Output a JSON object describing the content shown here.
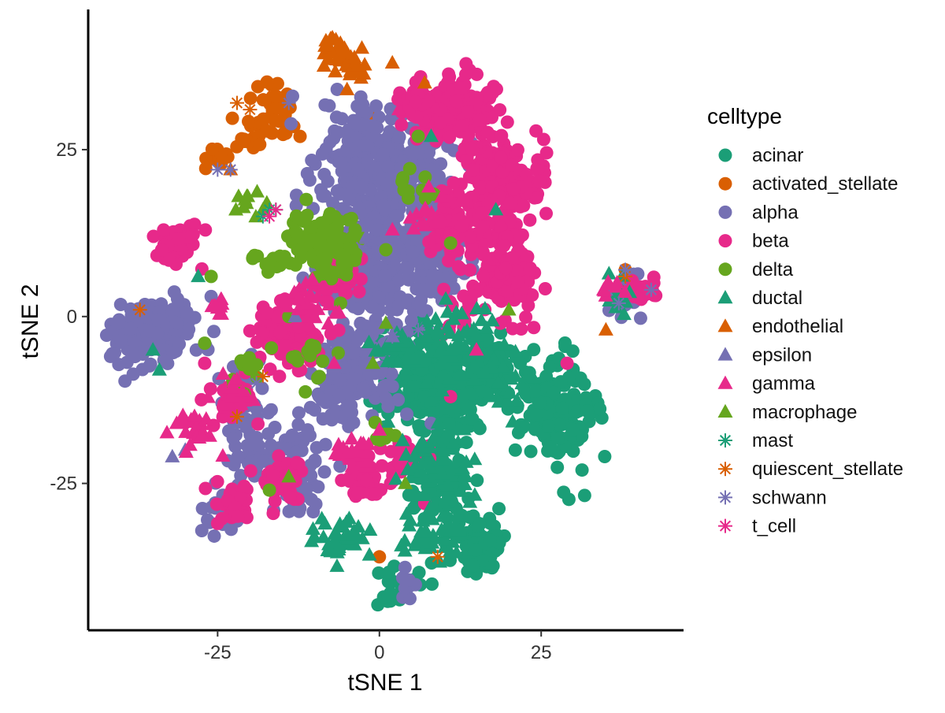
{
  "chart_data": {
    "type": "scatter",
    "title": "",
    "xlabel": "tSNE 1",
    "ylabel": "tSNE 2",
    "xlim": [
      -45,
      47
    ],
    "ylim": [
      -47,
      46
    ],
    "x_ticks": [
      -25,
      0,
      25
    ],
    "y_ticks": [
      -25,
      0,
      25
    ],
    "x_tick_labels": [
      "-25",
      "0",
      "25"
    ],
    "y_tick_labels": [
      "-25",
      "0",
      "25"
    ],
    "grid": false,
    "legend": {
      "title": "celltype",
      "placement": "right"
    },
    "series": [
      {
        "name": "acinar",
        "color": "#1B9E77",
        "shape": "circle",
        "clusters": [
          [
            7,
            -9,
            4,
            5,
            150
          ],
          [
            11,
            -12,
            3,
            4,
            100
          ],
          [
            16,
            -7,
            3,
            3,
            80
          ],
          [
            27,
            -14,
            4,
            5,
            140
          ],
          [
            9,
            -25,
            3,
            3,
            60
          ],
          [
            14,
            -32,
            3,
            4,
            50
          ],
          [
            3,
            -40,
            2,
            2,
            25
          ],
          [
            16,
            -35,
            2,
            2,
            30
          ]
        ],
        "points": [
          [
            -32,
            0
          ],
          [
            21,
            -20
          ]
        ]
      },
      {
        "name": "activated_stellate",
        "color": "#D95F02",
        "shape": "circle",
        "clusters": [
          [
            -25,
            24,
            2,
            1,
            18
          ],
          [
            -20,
            28,
            2,
            2,
            18
          ],
          [
            -16,
            32,
            2,
            2,
            25
          ],
          [
            -16,
            27,
            2,
            2,
            10
          ]
        ],
        "points": [
          [
            -1,
            30
          ],
          [
            0,
            -36
          ],
          [
            38,
            7
          ],
          [
            8,
            28
          ]
        ]
      },
      {
        "name": "alpha",
        "color": "#7570B3",
        "shape": "circle",
        "clusters": [
          [
            0,
            22,
            6,
            6,
            320
          ],
          [
            -1,
            6,
            5,
            5,
            200
          ],
          [
            -4,
            -8,
            4,
            4,
            180
          ],
          [
            8,
            10,
            3,
            5,
            130
          ],
          [
            -38,
            -3,
            3,
            3,
            80
          ],
          [
            -32,
            -2,
            3,
            3,
            60
          ],
          [
            -18,
            -21,
            3,
            3,
            50
          ],
          [
            -12,
            -23,
            3,
            4,
            50
          ],
          [
            -21,
            -12,
            2,
            3,
            30
          ],
          [
            -24,
            -29,
            2,
            2,
            25
          ],
          [
            38,
            3,
            2,
            2,
            20
          ],
          [
            4,
            -41,
            1,
            2,
            10
          ]
        ],
        "points": [
          [
            -26,
            3
          ],
          [
            8,
            -16
          ],
          [
            2,
            31
          ],
          [
            -10,
            -14
          ],
          [
            -12,
            -23
          ]
        ]
      },
      {
        "name": "beta",
        "color": "#E7298A",
        "shape": "circle",
        "clusters": [
          [
            12,
            31,
            4,
            3,
            160
          ],
          [
            19,
            20,
            4,
            4,
            180
          ],
          [
            20,
            6,
            3,
            4,
            130
          ],
          [
            12,
            13,
            3,
            3,
            80
          ],
          [
            6,
            32,
            2,
            2,
            40
          ],
          [
            -31,
            11,
            2,
            2,
            50
          ],
          [
            -14,
            -3,
            3,
            3,
            130
          ],
          [
            -6,
            6,
            2,
            2,
            50
          ],
          [
            -2,
            -24,
            2,
            2,
            60
          ],
          [
            -15,
            -25,
            2,
            2,
            50
          ],
          [
            -23,
            -13,
            2,
            2,
            30
          ],
          [
            -23,
            -28,
            2,
            2,
            25
          ],
          [
            41,
            4,
            2,
            1,
            30
          ],
          [
            4,
            -21,
            2,
            2,
            20
          ],
          [
            13,
            1,
            2,
            2,
            15
          ]
        ],
        "points": [
          [
            11,
            -12
          ],
          [
            -27,
            -7
          ],
          [
            -25,
            -31
          ],
          [
            7,
            -28
          ],
          [
            29,
            -7
          ],
          [
            -3,
            -20
          ]
        ]
      },
      {
        "name": "delta",
        "color": "#66A61E",
        "shape": "circle",
        "clusters": [
          [
            -9,
            11,
            3,
            3,
            110
          ],
          [
            -17,
            8,
            2,
            1,
            20
          ],
          [
            1,
            -18,
            1,
            1,
            8
          ],
          [
            -11,
            -6,
            2,
            2,
            15
          ],
          [
            -20,
            -9,
            2,
            2,
            12
          ],
          [
            6,
            20,
            2,
            2,
            10
          ]
        ],
        "points": [
          [
            -26,
            6
          ],
          [
            6,
            27
          ],
          [
            11,
            11
          ],
          [
            1,
            10
          ],
          [
            -14,
            0
          ],
          [
            -27,
            -4
          ],
          [
            -17,
            -26
          ],
          [
            -6,
            2
          ],
          [
            -9,
            14
          ]
        ]
      },
      {
        "name": "ductal",
        "color": "#1B9E77",
        "shape": "triangle",
        "clusters": [
          [
            12,
            -4,
            5,
            4,
            70
          ],
          [
            9,
            -23,
            4,
            4,
            60
          ],
          [
            -6,
            -33,
            3,
            2,
            40
          ],
          [
            8,
            -33,
            3,
            2,
            40
          ],
          [
            2,
            -5,
            3,
            2,
            20
          ],
          [
            20,
            -11,
            3,
            2,
            20
          ],
          [
            37,
            3,
            2,
            2,
            12
          ]
        ],
        "points": [
          [
            -35,
            -5
          ],
          [
            -34,
            -8
          ],
          [
            -28,
            6
          ],
          [
            8,
            27
          ],
          [
            18,
            16
          ]
        ]
      },
      {
        "name": "endothelial",
        "color": "#D95F02",
        "shape": "triangle",
        "clusters": [
          [
            -6,
            40,
            2,
            2,
            30
          ],
          [
            -4,
            37,
            1,
            1,
            8
          ]
        ],
        "points": [
          [
            -5,
            34
          ],
          [
            2,
            38
          ],
          [
            7,
            35
          ],
          [
            35,
            -2
          ],
          [
            -23,
            22
          ]
        ]
      },
      {
        "name": "epsilon",
        "color": "#7570B3",
        "shape": "triangle",
        "clusters": [],
        "points": [
          [
            -30,
            -20
          ],
          [
            -32,
            -21
          ],
          [
            -13,
            0
          ],
          [
            35,
            4
          ],
          [
            2,
            -3
          ],
          [
            -2,
            12
          ]
        ]
      },
      {
        "name": "gamma",
        "color": "#E7298A",
        "shape": "triangle",
        "clusters": [
          [
            -29,
            -17,
            2,
            2,
            25
          ],
          [
            -25,
            2,
            1,
            1,
            10
          ],
          [
            -10,
            2,
            2,
            2,
            25
          ],
          [
            -4,
            -21,
            2,
            2,
            20
          ],
          [
            -22,
            -12,
            2,
            2,
            15
          ],
          [
            8,
            15,
            2,
            2,
            15
          ],
          [
            36,
            4,
            1,
            1,
            8
          ]
        ],
        "points": [
          [
            -7,
            -7
          ],
          [
            2,
            13
          ],
          [
            3,
            31
          ],
          [
            0,
            -17
          ],
          [
            15,
            -5
          ]
        ]
      },
      {
        "name": "macrophage",
        "color": "#66A61E",
        "shape": "triangle",
        "clusters": [
          [
            -21,
            17,
            2,
            1,
            10
          ]
        ],
        "points": [
          [
            -14,
            -24
          ],
          [
            4,
            -25
          ],
          [
            -18,
            16
          ],
          [
            -1,
            -7
          ],
          [
            1,
            -1
          ],
          [
            20,
            1
          ]
        ]
      },
      {
        "name": "mast",
        "color": "#1B9E77",
        "shape": "asterisk",
        "clusters": [],
        "points": [
          [
            -17,
            16
          ],
          [
            -16,
            16
          ],
          [
            -18,
            15
          ]
        ]
      },
      {
        "name": "quiescent_stellate",
        "color": "#D95F02",
        "shape": "asterisk",
        "clusters": [],
        "points": [
          [
            -37,
            1
          ],
          [
            -22,
            -15
          ],
          [
            -18,
            -9
          ],
          [
            9,
            -36
          ],
          [
            -22,
            32
          ],
          [
            38,
            6
          ],
          [
            -26,
            23
          ],
          [
            -20,
            31
          ]
        ]
      },
      {
        "name": "schwann",
        "color": "#7570B3",
        "shape": "asterisk",
        "clusters": [],
        "points": [
          [
            -14,
            32
          ],
          [
            -25,
            22
          ],
          [
            -23,
            22
          ],
          [
            -2,
            11
          ],
          [
            2,
            -3
          ],
          [
            42,
            4
          ],
          [
            37,
            2
          ],
          [
            38,
            7
          ],
          [
            -19,
            -10
          ],
          [
            6,
            -2
          ]
        ]
      },
      {
        "name": "t_cell",
        "color": "#E7298A",
        "shape": "asterisk",
        "clusters": [],
        "points": [
          [
            -16,
            16
          ],
          [
            -17,
            15
          ]
        ]
      }
    ]
  }
}
